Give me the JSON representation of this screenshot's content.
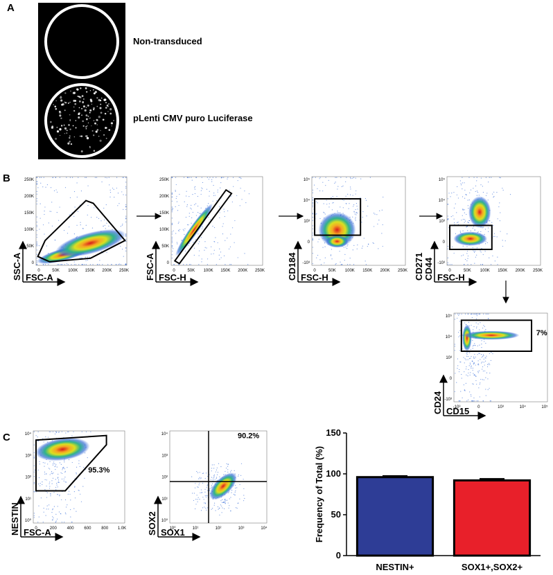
{
  "figure": {
    "panel_labels": [
      "A",
      "B",
      "C"
    ],
    "panel_a": {
      "labels": [
        "Non-transduced",
        "pLenti CMV puro Luciferase"
      ]
    },
    "plots": [
      {
        "x_label": "FSC-A",
        "y_label": [
          "SSC-A"
        ],
        "x_ticks": [
          "0",
          "50K",
          "100K",
          "150K",
          "200K",
          "250K"
        ],
        "y_ticks": [
          "0",
          "50K",
          "100K",
          "150K",
          "200K",
          "250K"
        ]
      },
      {
        "x_label": "FSC-H",
        "y_label": [
          "FSC-A"
        ],
        "x_ticks": [
          "0",
          "50K",
          "100K",
          "150K",
          "200K",
          "250K"
        ],
        "y_ticks": [
          "0",
          "50K",
          "100K",
          "150K",
          "200K",
          "250K"
        ]
      },
      {
        "x_label": "FSC-H",
        "y_label": [
          "CD184"
        ],
        "x_ticks": [
          "0",
          "50K",
          "100K",
          "150K",
          "200K",
          "250K"
        ],
        "y_ticks": [
          "-10³",
          "0",
          "10³",
          "10⁴",
          "10⁵"
        ]
      },
      {
        "x_label": "FSC-H",
        "y_label": [
          "CD271",
          "CD44"
        ],
        "x_ticks": [
          "0",
          "50K",
          "100K",
          "150K",
          "200K",
          "250K"
        ],
        "y_ticks": [
          "-10³",
          "0",
          "10³",
          "10⁴",
          "10⁵"
        ]
      },
      {
        "x_label": "CD15",
        "y_label": [
          "CD24"
        ],
        "x_ticks": [
          "-10³",
          "0",
          "10³",
          "10⁴",
          "10⁵"
        ],
        "y_ticks": [
          "-10³",
          "0",
          "10³",
          "10⁴",
          "10⁵"
        ],
        "annotation": "7%"
      },
      {
        "x_label": "FSC-A",
        "y_label": [
          "NESTIN"
        ],
        "x_ticks": [
          "0",
          "200",
          "400",
          "600",
          "800",
          "1.0K"
        ],
        "y_ticks": [
          "10⁰",
          "10¹",
          "10²",
          "10³",
          "10⁴"
        ],
        "annotation": "95.3%"
      },
      {
        "x_label": "SOX1",
        "y_label": [
          "SOX2"
        ],
        "x_ticks": [
          "10⁰",
          "10¹",
          "10²",
          "10³",
          "10⁴"
        ],
        "y_ticks": [
          "10⁰",
          "10¹",
          "10²",
          "10³",
          "10⁴"
        ],
        "annotation": "90.2%"
      }
    ]
  },
  "chart_data": {
    "type": "bar",
    "y_label": "Frequency of Total (%)",
    "categories": [
      "NESTIN+",
      "SOX1+,SOX2+"
    ],
    "values": [
      96,
      92
    ],
    "errors": [
      1.5,
      2
    ],
    "colors": [
      "#2e3d96",
      "#e8202a"
    ],
    "ylim": [
      0,
      150
    ],
    "yticks": [
      0,
      50,
      100,
      150
    ]
  }
}
